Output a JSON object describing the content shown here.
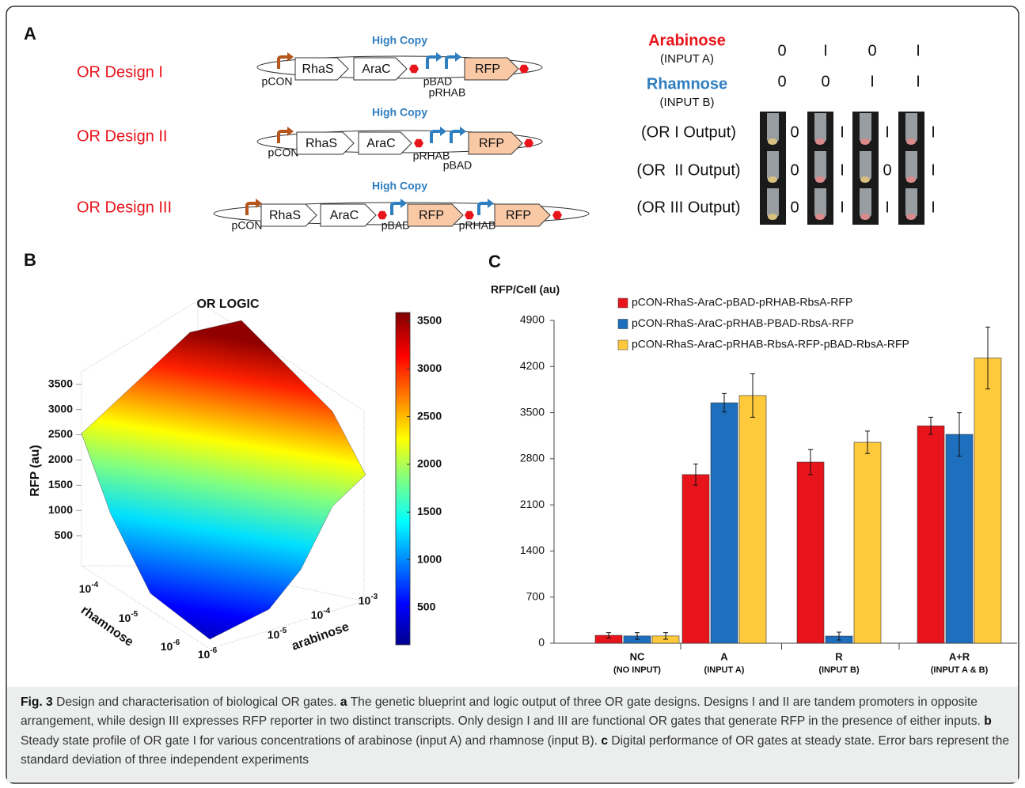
{
  "panel_a": {
    "letter": "A",
    "designs": [
      {
        "label": "OR Design I",
        "copy_number": "High Copy",
        "parts": [
          "pCON",
          "RhaS",
          "AraC",
          "pBAD",
          "pRHAB",
          "RFP"
        ]
      },
      {
        "label": "OR Design II",
        "copy_number": "High Copy",
        "parts": [
          "pCON",
          "RhaS",
          "AraC",
          "pRHAB",
          "pBAD",
          "RFP"
        ]
      },
      {
        "label": "OR Design III",
        "copy_number": "High Copy",
        "parts": [
          "pCON",
          "RhaS",
          "AraC",
          "pBAD",
          "RFP",
          "pRHAB",
          "RFP"
        ]
      }
    ],
    "truth_table": {
      "inputs": [
        {
          "name": "Arabinose",
          "subtitle": "(INPUT A)",
          "values": [
            "0",
            "I",
            "0",
            "I"
          ]
        },
        {
          "name": "Rhamnose",
          "subtitle": "(INPUT B)",
          "values": [
            "0",
            "0",
            "I",
            "I"
          ]
        }
      ],
      "outputs": [
        {
          "label": "(OR I Output)",
          "values": [
            "0",
            "I",
            "I",
            "I"
          ]
        },
        {
          "label": "(OR  II Output)",
          "values": [
            "0",
            "I",
            "0",
            "I"
          ]
        },
        {
          "label": "(OR III Output)",
          "values": [
            "0",
            "I",
            "I",
            "I"
          ]
        }
      ]
    }
  },
  "panel_b": {
    "letter": "B",
    "title": "OR LOGIC",
    "zlabel": "RFP (au)",
    "zlim": [
      0,
      3700
    ],
    "zticks": [
      500,
      1000,
      1500,
      2000,
      2500,
      3000,
      3500
    ],
    "rhamnose_label": "rhamnose",
    "rhamnose_ticks": [
      {
        "value": 0.0001,
        "label": "10",
        "exponent": "-4"
      },
      {
        "value": 1e-05,
        "label": "10",
        "exponent": "-5"
      },
      {
        "value": 1e-06,
        "label": "10",
        "exponent": "-6"
      }
    ],
    "arabinose_label": "arabinose",
    "arabinose_ticks": [
      {
        "value": 1e-06,
        "label": "10",
        "exponent": "-6"
      },
      {
        "value": 1e-05,
        "label": "10",
        "exponent": "-5"
      },
      {
        "value": 0.0001,
        "label": "10",
        "exponent": "-4"
      },
      {
        "value": 0.001,
        "label": "10",
        "exponent": "-3"
      }
    ],
    "colorbar_lim": [
      110,
      3590
    ],
    "colorbar_ticks": [
      500,
      1000,
      1500,
      2000,
      2500,
      3000,
      3500
    ]
  },
  "chart_data": {
    "type": "bar",
    "letter": "C",
    "ylabel": "RFP/Cell (au)",
    "categories": [
      "NC",
      "A",
      "R",
      "A+R"
    ],
    "category_subtitles": [
      "(NO INPUT)",
      "(INPUT A)",
      "(INPUT B)",
      "(INPUT A & B)"
    ],
    "series": [
      {
        "name": "pCON-RhaS-AraC-pBAD-pRHAB-RbsA-RFP",
        "color": "#e8141b",
        "values": [
          120,
          2560,
          2750,
          3300
        ],
        "errors": [
          40,
          160,
          190,
          130
        ]
      },
      {
        "name": "pCON-RhaS-AraC-pRHAB-PBAD-RbsA-RFP",
        "color": "#1f6fbf",
        "values": [
          110,
          3650,
          108,
          3170
        ],
        "errors": [
          50,
          140,
          60,
          330
        ]
      },
      {
        "name": "pCON-RhaS-AraC-pRHAB-RbsA-RFP-pBAD-RbsA-RFP",
        "color": "#ffc93c",
        "values": [
          110,
          3760,
          3050,
          4330
        ],
        "errors": [
          50,
          330,
          170,
          470
        ]
      }
    ],
    "ylim": [
      0,
      4900
    ],
    "yticks": [
      0,
      700,
      1400,
      2100,
      2800,
      3500,
      4200,
      4900
    ]
  },
  "caption": [
    {
      "text": "Fig. 3",
      "bold": true
    },
    {
      "text": " Design and characterisation of biological OR gates. ",
      "bold": false
    },
    {
      "text": "a",
      "bold": true
    },
    {
      "text": " The genetic blueprint and logic output of three OR gate designs. Designs I and II are tandem promoters in opposite arrangement, while design III expresses RFP reporter in two distinct transcripts. Only design I and III are functional OR gates that generate RFP in the presence of either inputs. ",
      "bold": false
    },
    {
      "text": "b",
      "bold": true
    },
    {
      "text": " Steady state profile of OR gate I for various concentrations of arabinose (input A) and rhamnose (input B). ",
      "bold": false
    },
    {
      "text": "c",
      "bold": true
    },
    {
      "text": " Digital performance of OR gates at steady state. Error bars represent the standard deviation of three independent experiments",
      "bold": false
    }
  ]
}
